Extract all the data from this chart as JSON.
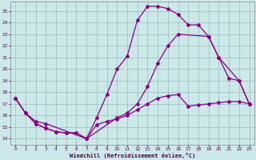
{
  "bg_color": "#cce8e8",
  "line_color": "#880088",
  "grid_color": "#99bbbb",
  "xlabel": "Windchill (Refroidissement éolien,°C)",
  "yticks": [
    14,
    15,
    16,
    17,
    18,
    19,
    20,
    21,
    22,
    23,
    24,
    25
  ],
  "xticks": [
    0,
    1,
    2,
    3,
    4,
    5,
    6,
    7,
    8,
    9,
    10,
    11,
    12,
    13,
    14,
    15,
    16,
    17,
    18,
    19,
    20,
    21,
    22,
    23
  ],
  "xlim": [
    -0.5,
    23.5
  ],
  "ylim": [
    13.5,
    25.8
  ],
  "line1_x": [
    0,
    1,
    2,
    3,
    4,
    5,
    6,
    7,
    8,
    9,
    10,
    11,
    12,
    13,
    14,
    15,
    16,
    17,
    18,
    19,
    20,
    21,
    22,
    23
  ],
  "line1_y": [
    17.5,
    16.2,
    15.3,
    14.9,
    14.6,
    14.5,
    14.5,
    14.0,
    15.8,
    17.8,
    20.0,
    21.1,
    24.2,
    25.4,
    25.4,
    25.2,
    24.7,
    23.8,
    23.8,
    22.8,
    21.0,
    19.2,
    19.0,
    17.0
  ],
  "line2_x": [
    0,
    1,
    2,
    3,
    7,
    10,
    11,
    12,
    13,
    14,
    15,
    16,
    19,
    20,
    22,
    23
  ],
  "line2_y": [
    17.5,
    16.2,
    15.5,
    15.3,
    14.0,
    15.8,
    16.2,
    17.0,
    18.5,
    20.5,
    22.0,
    23.0,
    22.8,
    21.0,
    19.0,
    17.0
  ],
  "line3_x": [
    0,
    1,
    2,
    3,
    4,
    5,
    6,
    7,
    8,
    9,
    10,
    11,
    12,
    13,
    14,
    15,
    16,
    17,
    18,
    19,
    20,
    21,
    22,
    23
  ],
  "line3_y": [
    17.5,
    16.2,
    15.3,
    14.9,
    14.6,
    14.5,
    14.5,
    14.0,
    15.2,
    15.5,
    15.7,
    16.0,
    16.5,
    17.0,
    17.5,
    17.7,
    17.8,
    16.8,
    16.9,
    17.0,
    17.1,
    17.2,
    17.2,
    17.0
  ]
}
